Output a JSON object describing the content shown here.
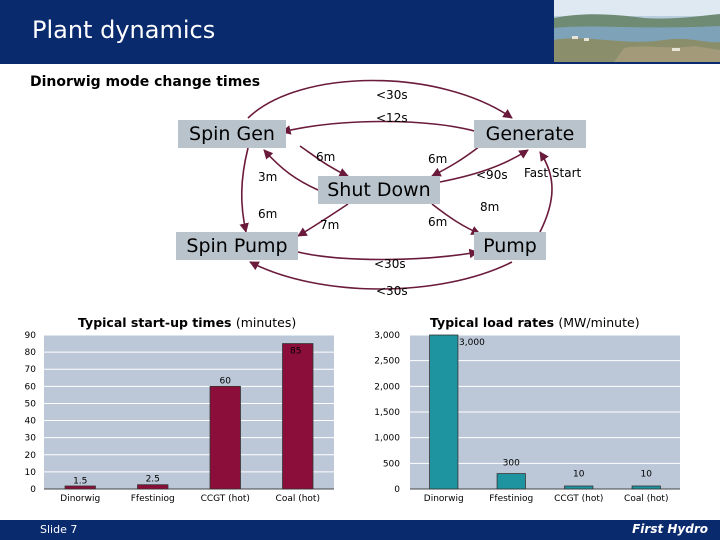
{
  "header": {
    "title": "Plant dynamics"
  },
  "footer": {
    "slide": "Slide 7",
    "brand": "First Hydro"
  },
  "diagram": {
    "title": "Dinorwig mode change times",
    "nodes": {
      "spin_gen": "Spin Gen",
      "generate": "Generate",
      "shut_down": "Shut Down",
      "spin_pump": "Spin Pump",
      "pump": "Pump"
    },
    "labels": {
      "top_outer": "<30s",
      "top_inner": "<12s",
      "sg_sd": "6m",
      "gen_sd": "6m",
      "sd_sg": "3m",
      "sg_sp": "6m",
      "sd_sp": "7m",
      "sd_pump": "6m",
      "sd_gen_fast": "<90s",
      "fast_start": "Fast Start",
      "pump_gen": "8m",
      "bottom_inner": "<30s",
      "bottom_outer": "<30s"
    }
  },
  "colors": {
    "header": "#0a2a6e",
    "node_fill": "#b9c3cc",
    "plot_bg": "#bcc8d8",
    "startup_bar": "#8b0e3a",
    "load_bar": "#1d94a0"
  },
  "chart_data": [
    {
      "type": "bar",
      "title": "Typical start-up times",
      "title_unit": "(minutes)",
      "categories": [
        "Dinorwig",
        "Ffestiniog",
        "CCGT (hot)",
        "Coal (hot)"
      ],
      "values": [
        1.5,
        2.5,
        60,
        85
      ],
      "value_labels": [
        "1.5",
        "2.5",
        "60",
        "85"
      ],
      "ylim": [
        0,
        90
      ],
      "yticks": [
        "0",
        "10",
        "20",
        "30",
        "40",
        "50",
        "60",
        "70",
        "80",
        "90"
      ],
      "grid": true
    },
    {
      "type": "bar",
      "title": "Typical load rates",
      "title_unit": "(MW/minute)",
      "categories": [
        "Dinorwig",
        "Ffestiniog",
        "CCGT (hot)",
        "Coal (hot)"
      ],
      "values": [
        3000,
        300,
        10,
        10
      ],
      "value_labels": [
        "3,000",
        "300",
        "10",
        "10"
      ],
      "ylim": [
        0,
        3000
      ],
      "yticks": [
        "0",
        "500",
        "1,000",
        "1,500",
        "2,000",
        "2,500",
        "3,000"
      ],
      "grid": true
    }
  ]
}
